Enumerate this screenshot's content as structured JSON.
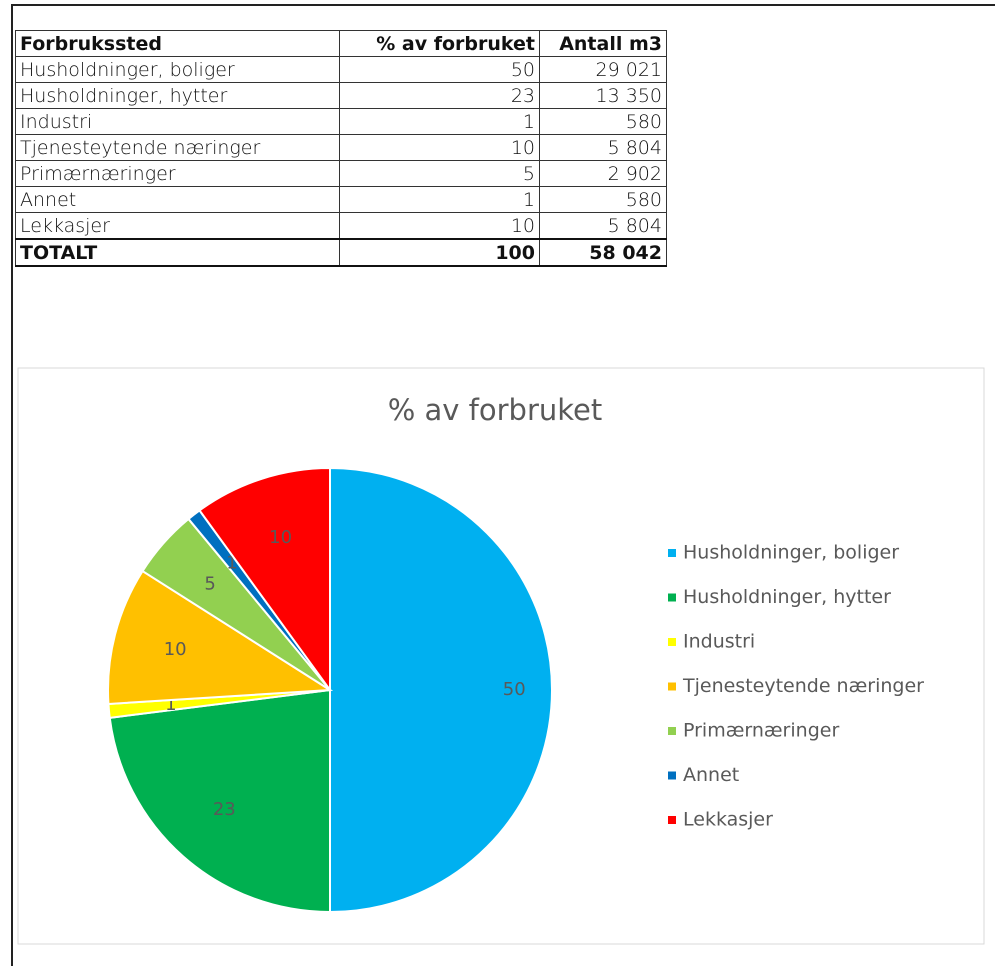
{
  "table": {
    "header": [
      "Forbrukssted",
      "% av forbruket",
      "Antall m3"
    ],
    "rows": [
      [
        "Husholdninger, boliger",
        "50",
        "29 021"
      ],
      [
        "Husholdninger, hytter",
        "23",
        "13 350"
      ],
      [
        "Industri",
        "1",
        "580"
      ],
      [
        "Tjenesteytende næringer",
        "10",
        "5 804"
      ],
      [
        "Primærnæringer",
        "5",
        "2 902"
      ],
      [
        "Annet",
        "1",
        "580"
      ],
      [
        "Lekkasjer",
        "10",
        "5 804"
      ]
    ],
    "total": [
      "TOTALT",
      "100",
      "58 042"
    ]
  },
  "chart_data": {
    "type": "pie",
    "title": "% av forbruket",
    "categories": [
      "Husholdninger, boliger",
      "Husholdninger, hytter",
      "Industri",
      "Tjenesteytende næringer",
      "Primærnæringer",
      "Annet",
      "Lekkasjer"
    ],
    "values": [
      50,
      23,
      1,
      10,
      5,
      1,
      10
    ],
    "colors": [
      "#00b0f0",
      "#00b050",
      "#ffff00",
      "#ffc000",
      "#92d050",
      "#0070c0",
      "#ff0000"
    ],
    "legend": "right"
  }
}
